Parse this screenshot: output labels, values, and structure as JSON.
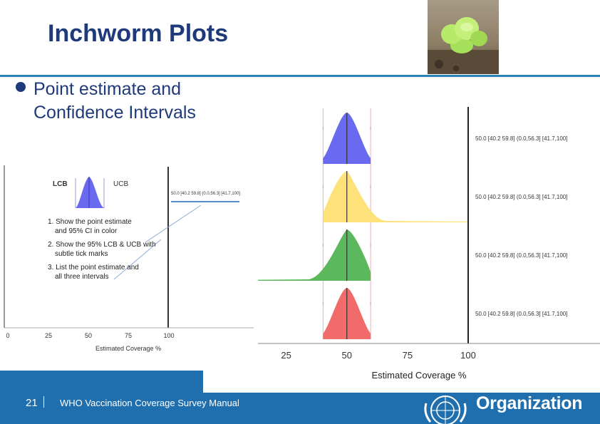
{
  "slide": {
    "title": "Inchworm Plots",
    "bullet": "Point estimate and Confidence Intervals",
    "footer_number": "21",
    "footer_text": "WHO Vaccination Coverage Survey Manual",
    "org_name": "Organization"
  },
  "colors": {
    "title": "#1f3a7a",
    "footer": "#1f6fae",
    "blue_worm": "#6a6af0",
    "yellow_worm": "#fde27a",
    "green_worm": "#5cb85c",
    "red_worm": "#f26b6b"
  },
  "icons": [
    "inchworm-photo",
    "un-emblem-icon"
  ],
  "left_figure": {
    "lcb_label": "LCB",
    "ucb_label": "UCB",
    "mini_label": "50.0 [40.2 59.8] (0.0,56.3] [41.7,100]",
    "notes": [
      "1. Show the point estimate",
      "and 95% CI in color",
      "2. Show the 95% LCB & UCB with",
      "subtle tick marks",
      "3. List the point estimate and",
      "all three intervals"
    ],
    "ticks": [
      "0",
      "25",
      "50",
      "75",
      "100"
    ],
    "xlabel": "Estimated Coverage %"
  },
  "chart_data": {
    "type": "area",
    "title": "",
    "xlabel": "Estimated Coverage %",
    "xticks": [
      "25",
      "50",
      "75",
      "100"
    ],
    "xlim": [
      0,
      100
    ],
    "series": [
      {
        "color": "#6a6af0",
        "point_estimate": 50.0,
        "ci": [
          40.2,
          59.8
        ],
        "lower_bound_interval": [
          0.0,
          56.3
        ],
        "upper_bound_interval": [
          41.7,
          100
        ],
        "label": "50.0 [40.2 59.8] (0.0,56.3] [41.7,100]"
      },
      {
        "color": "#fde27a",
        "point_estimate": 50.0,
        "ci": [
          40.2,
          59.8
        ],
        "lower_bound_interval": [
          0.0,
          56.3
        ],
        "upper_bound_interval": [
          41.7,
          100
        ],
        "label": "50.0 [40.2 59.8] (0.0,56.3] [41.7,100]"
      },
      {
        "color": "#5cb85c",
        "point_estimate": 50.0,
        "ci": [
          40.2,
          59.8
        ],
        "lower_bound_interval": [
          0.0,
          56.3
        ],
        "upper_bound_interval": [
          41.7,
          100
        ],
        "label": "50.0 [40.2 59.8] (0.0,56.3] [41.7,100]"
      },
      {
        "color": "#f26b6b",
        "point_estimate": 50.0,
        "ci": [
          40.2,
          59.8
        ],
        "lower_bound_interval": [
          0.0,
          56.3
        ],
        "upper_bound_interval": [
          41.7,
          100
        ],
        "label": "50.0 [40.2 59.8] (0.0,56.3] [41.7,100]"
      }
    ]
  }
}
